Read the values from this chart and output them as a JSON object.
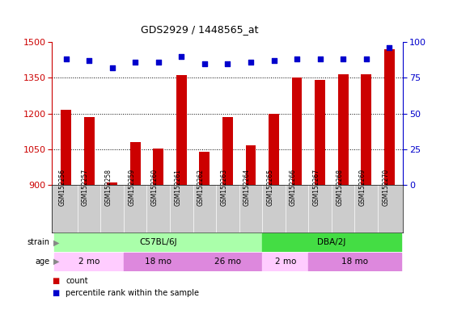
{
  "title": "GDS2929 / 1448565_at",
  "samples": [
    "GSM152256",
    "GSM152257",
    "GSM152258",
    "GSM152259",
    "GSM152260",
    "GSM152261",
    "GSM152262",
    "GSM152263",
    "GSM152264",
    "GSM152265",
    "GSM152266",
    "GSM152267",
    "GSM152268",
    "GSM152269",
    "GSM152270"
  ],
  "counts": [
    1215,
    1185,
    910,
    1080,
    1052,
    1360,
    1038,
    1185,
    1065,
    1197,
    1350,
    1340,
    1365,
    1365,
    1470
  ],
  "percentile_ranks": [
    88,
    87,
    82,
    86,
    86,
    90,
    85,
    85,
    86,
    87,
    88,
    88,
    88,
    88,
    96
  ],
  "ylim_left": [
    900,
    1500
  ],
  "ylim_right": [
    0,
    100
  ],
  "yticks_left": [
    900,
    1050,
    1200,
    1350,
    1500
  ],
  "yticks_right": [
    0,
    25,
    50,
    75,
    100
  ],
  "bar_color": "#cc0000",
  "dot_color": "#0000cc",
  "bar_width": 0.45,
  "strain_groups": [
    {
      "label": "C57BL/6J",
      "start": 0,
      "end": 9,
      "color": "#aaffaa"
    },
    {
      "label": "DBA/2J",
      "start": 9,
      "end": 15,
      "color": "#44dd44"
    }
  ],
  "age_groups": [
    {
      "label": "2 mo",
      "start": 0,
      "end": 3,
      "color": "#ffccff"
    },
    {
      "label": "18 mo",
      "start": 3,
      "end": 6,
      "color": "#dd88dd"
    },
    {
      "label": "26 mo",
      "start": 6,
      "end": 9,
      "color": "#dd88dd"
    },
    {
      "label": "2 mo",
      "start": 9,
      "end": 11,
      "color": "#ffccff"
    },
    {
      "label": "18 mo",
      "start": 11,
      "end": 15,
      "color": "#dd88dd"
    }
  ],
  "background_color": "#ffffff",
  "xticklabel_bg": "#cccccc"
}
